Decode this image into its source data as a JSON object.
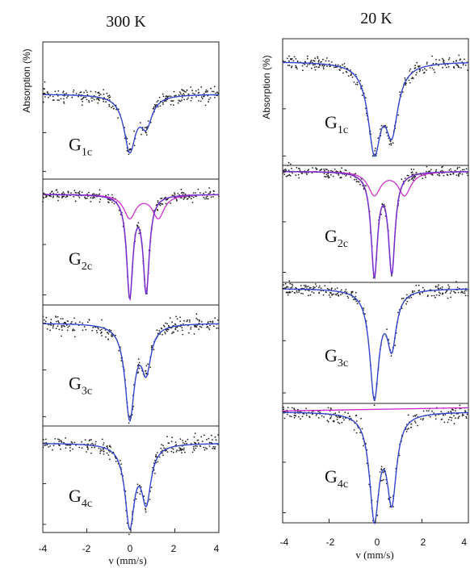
{
  "colors": {
    "fit": "#3344cc",
    "sub": "#cc22cc",
    "points": "#222222",
    "frame": "#222222"
  },
  "chart_data": [
    {
      "type": "scatter",
      "title": "300 K",
      "xlabel": "v (mm/s)",
      "ylabel": "Absorption (%)",
      "xlim": [
        -4,
        4
      ],
      "xticks": [
        "-4",
        "-2",
        "0",
        "2",
        "4"
      ],
      "grid": false,
      "series": [
        {
          "sample": "G",
          "sub": "1c",
          "components": 1,
          "center1": -0.05,
          "center2": 0.7,
          "depth1": 0.68,
          "depth2": 0.35,
          "width": 0.32,
          "noise": 0.09
        },
        {
          "sample": "G",
          "sub": "2c",
          "components": 2,
          "center1": -0.05,
          "center2": 0.7,
          "depth1": 0.95,
          "depth2": 0.9,
          "width": 0.17,
          "noise": 0.05
        },
        {
          "sample": "G",
          "sub": "3c",
          "components": 1,
          "center1": -0.05,
          "center2": 0.7,
          "depth1": 0.95,
          "depth2": 0.45,
          "width": 0.26,
          "noise": 0.08
        },
        {
          "sample": "G",
          "sub": "4c",
          "components": 1,
          "center1": -0.05,
          "center2": 0.7,
          "depth1": 0.95,
          "depth2": 0.65,
          "width": 0.26,
          "noise": 0.1
        }
      ]
    },
    {
      "type": "scatter",
      "title": "20 K",
      "xlabel": "v (mm/s)",
      "ylabel": "Absorption (%)",
      "xlim": [
        -4,
        4
      ],
      "xticks": [
        "-4",
        "-2",
        "0",
        "2",
        "4"
      ],
      "grid": false,
      "series": [
        {
          "sample": "G",
          "sub": "1c",
          "components": 1,
          "center1": -0.05,
          "center2": 0.7,
          "depth1": 0.85,
          "depth2": 0.65,
          "width": 0.33,
          "noise": 0.07
        },
        {
          "sample": "G",
          "sub": "2c",
          "components": 2,
          "center1": -0.05,
          "center2": 0.7,
          "depth1": 0.96,
          "depth2": 0.93,
          "width": 0.17,
          "noise": 0.05
        },
        {
          "sample": "G",
          "sub": "3c",
          "components": 1,
          "center1": -0.05,
          "center2": 0.7,
          "depth1": 0.97,
          "depth2": 0.5,
          "width": 0.24,
          "noise": 0.06
        },
        {
          "sample": "G",
          "sub": "4c",
          "components": 1,
          "center1": -0.05,
          "center2": 0.7,
          "depth1": 0.97,
          "depth2": 0.8,
          "width": 0.25,
          "noise": 0.08
        }
      ]
    }
  ]
}
